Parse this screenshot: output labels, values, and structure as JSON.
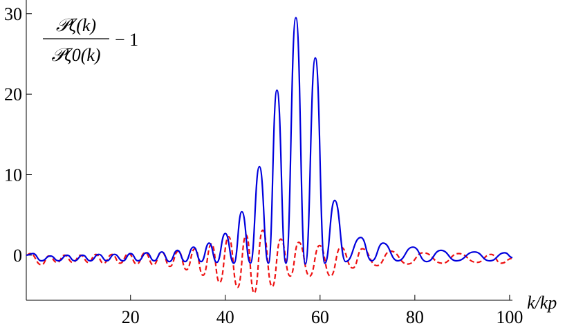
{
  "chart_data": {
    "type": "line",
    "ylabel_numerator": "𝒫ζ(k)",
    "ylabel_denominator": "𝒫ζ0(k)",
    "ylabel_suffix": "− 1",
    "xlabel": "k/kp",
    "xlim": [
      -2.0,
      100.6
    ],
    "xticks": [
      20,
      40,
      60,
      80,
      100
    ],
    "ylim": [
      -5.6,
      31.7
    ],
    "yticks": [
      0,
      10,
      20,
      30
    ],
    "series": [
      {
        "color": "#0000dd",
        "dash": false,
        "x": [
          -2.0,
          -0.6,
          1.2,
          3.1,
          4.8,
          6.6,
          8.2,
          9.9,
          11.5,
          13.3,
          15.0,
          16.6,
          18.4,
          20.0,
          21.6,
          23.4,
          25.0,
          26.6,
          28.2,
          29.9,
          31.5,
          33.3,
          34.9,
          36.6,
          38.2,
          40.0,
          41.8,
          43.5,
          45.3,
          47.2,
          49.1,
          50.9,
          52.8,
          54.9,
          56.9,
          59.0,
          61.0,
          63.1,
          65.4,
          68.6,
          70.9,
          73.3,
          76.4,
          79.6,
          82.5,
          85.5,
          88.8,
          92.6,
          95.8,
          99.0,
          100.6
        ],
        "values": [
          0,
          0.2,
          -0.7,
          -0.1,
          -0.7,
          0.0,
          -0.7,
          0.0,
          -0.7,
          0.1,
          -0.7,
          0.1,
          -0.7,
          0.2,
          -0.7,
          0.3,
          -0.7,
          0.4,
          -0.8,
          0.6,
          -0.8,
          1.0,
          -0.8,
          1.5,
          -0.9,
          2.7,
          -1,
          5.4,
          -1,
          11,
          -1,
          20.5,
          -1,
          29.5,
          -1.1,
          24.5,
          -1,
          6.8,
          -0.8,
          2.2,
          -0.7,
          1.5,
          -0.7,
          1.0,
          -0.8,
          0.6,
          -0.7,
          0.4,
          -0.7,
          0.3,
          -0.3
        ]
      },
      {
        "color": "#ee1111",
        "dash": true,
        "x": [
          -2.0,
          -1.2,
          1.2,
          2.8,
          4.5,
          6.1,
          7.8,
          9.5,
          11.1,
          12.7,
          14.3,
          16.1,
          17.8,
          19.6,
          21.3,
          23.1,
          24.8,
          26.6,
          28.3,
          30.1,
          31.8,
          33.6,
          35.3,
          37.1,
          38.8,
          40.7,
          42.6,
          44.4,
          46.1,
          47.9,
          49.9,
          51.7,
          53.7,
          55.5,
          57.8,
          59.9,
          62.2,
          64.4,
          66.9,
          68.9,
          72.0,
          74.9,
          78.5,
          81.8,
          85.8,
          89.2,
          93.1,
          96.1,
          98.2,
          100.6
        ],
        "values": [
          0,
          0.2,
          -1.2,
          -0.1,
          -0.9,
          0,
          -0.9,
          0,
          -0.9,
          0.1,
          -1.0,
          0.1,
          -1.0,
          0.2,
          -1.1,
          0.3,
          -1.2,
          0.4,
          -1.4,
          0.5,
          -1.8,
          0.8,
          -2.5,
          1.4,
          -3.4,
          2.3,
          -4.0,
          2.5,
          -4.7,
          3.1,
          -3.9,
          2.0,
          -2.6,
          1.6,
          -2.6,
          1.2,
          -2.6,
          1.0,
          -1.6,
          0.8,
          -1.3,
          0.5,
          -1.1,
          0.3,
          -1.0,
          0.2,
          -0.9,
          0.1,
          -1.0,
          -0.4
        ]
      }
    ]
  }
}
